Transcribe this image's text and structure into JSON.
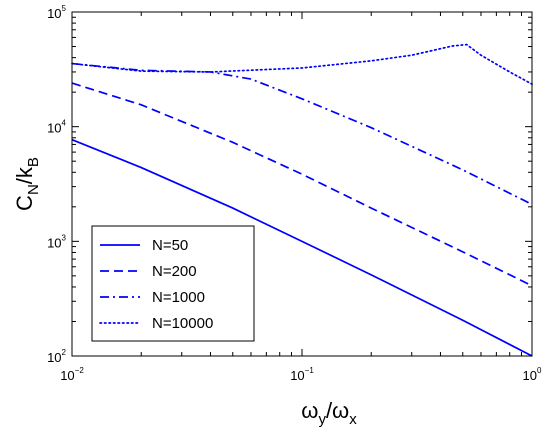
{
  "chart_data": {
    "type": "line",
    "x_scale": "log",
    "y_scale": "log",
    "xlim": [
      0.01,
      1
    ],
    "ylim": [
      100,
      100000
    ],
    "xlabel": {
      "main": "ω",
      "sub1": "y",
      "slash": "/ω",
      "sub2": "x"
    },
    "ylabel": {
      "main": "C",
      "sub1": "N",
      "slash": "/k",
      "sub2": "B"
    },
    "x_ticks": [
      {
        "value": 0.01,
        "base": "10",
        "exp": "−2"
      },
      {
        "value": 0.1,
        "base": "10",
        "exp": "−1"
      },
      {
        "value": 1,
        "base": "10",
        "exp": "0"
      }
    ],
    "y_ticks": [
      {
        "value": 100,
        "base": "10",
        "exp": "2"
      },
      {
        "value": 1000,
        "base": "10",
        "exp": "3"
      },
      {
        "value": 10000,
        "base": "10",
        "exp": "4"
      },
      {
        "value": 100000,
        "base": "10",
        "exp": "5"
      }
    ],
    "grid": false,
    "legend_position": "bottom-left",
    "series": [
      {
        "name": "N=50",
        "style": "solid",
        "color": "#0000ff",
        "points": [
          [
            0.01,
            7700
          ],
          [
            0.02,
            4400
          ],
          [
            0.05,
            1950
          ],
          [
            0.1,
            1000
          ],
          [
            0.2,
            510
          ],
          [
            0.5,
            205
          ],
          [
            1,
            100
          ]
        ]
      },
      {
        "name": "N=200",
        "style": "dashed",
        "color": "#0000ff",
        "points": [
          [
            0.01,
            24000
          ],
          [
            0.02,
            15500
          ],
          [
            0.05,
            7300
          ],
          [
            0.1,
            3850
          ],
          [
            0.2,
            1950
          ],
          [
            0.5,
            810
          ],
          [
            1,
            410
          ]
        ]
      },
      {
        "name": "N=1000",
        "style": "dashdot",
        "color": "#0000ff",
        "points": [
          [
            0.01,
            35500
          ],
          [
            0.02,
            31000
          ],
          [
            0.04,
            30000
          ],
          [
            0.06,
            26000
          ],
          [
            0.1,
            17500
          ],
          [
            0.2,
            9800
          ],
          [
            0.5,
            4200
          ],
          [
            1,
            2100
          ]
        ]
      },
      {
        "name": "N=10000",
        "style": "dotted",
        "color": "#0000ff",
        "points": [
          [
            0.01,
            35500
          ],
          [
            0.02,
            30500
          ],
          [
            0.04,
            30000
          ],
          [
            0.1,
            32500
          ],
          [
            0.2,
            37500
          ],
          [
            0.3,
            42000
          ],
          [
            0.45,
            50500
          ],
          [
            0.52,
            52000
          ],
          [
            0.6,
            42000
          ],
          [
            0.8,
            30000
          ],
          [
            1,
            23500
          ]
        ]
      }
    ]
  }
}
